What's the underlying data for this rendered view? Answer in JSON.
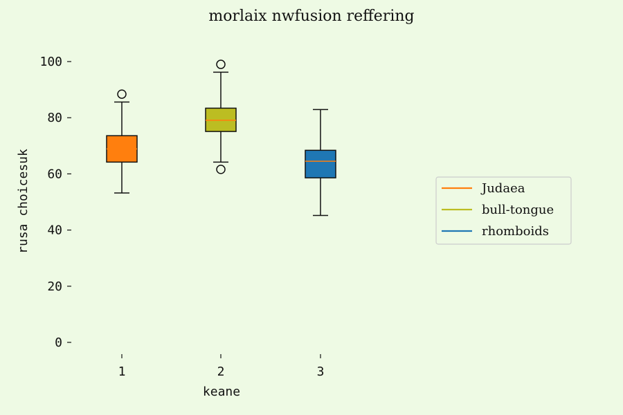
{
  "chart_data": {
    "type": "box",
    "title": "morlaix nwfusion reffering",
    "xlabel": "keane",
    "ylabel": "rusa choicesuk",
    "ylim": [
      0,
      105
    ],
    "yticks": [
      0,
      20,
      40,
      60,
      80,
      100
    ],
    "categories": [
      "1",
      "2",
      "3"
    ],
    "grid": false,
    "legend_position": "right",
    "series": [
      {
        "name": "Judaea",
        "color": "#ff7f0e",
        "box_color": "#ff7f0e",
        "whisker_low": 53.2,
        "q1": 64.2,
        "median": 68.9,
        "q3": 73.6,
        "whisker_high": 85.6,
        "outliers": [
          88.4
        ]
      },
      {
        "name": "bull-tongue",
        "color": "#bcbd22",
        "box_color": "#bcbd22",
        "whisker_low": 64.2,
        "q1": 75.1,
        "median": 79.1,
        "q3": 83.4,
        "whisker_high": 96.2,
        "outliers": [
          61.6,
          99.0
        ]
      },
      {
        "name": "rhomboids",
        "color": "#1f77b4",
        "box_color": "#1f77b4",
        "whisker_low": 45.2,
        "q1": 58.6,
        "median": 64.5,
        "q3": 68.4,
        "whisker_high": 82.9,
        "outliers": []
      }
    ]
  }
}
